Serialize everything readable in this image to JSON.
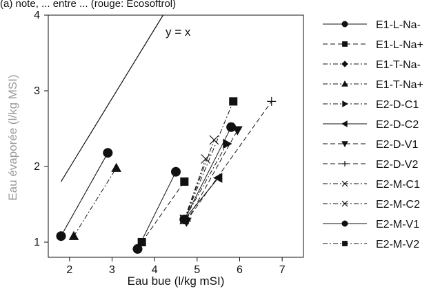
{
  "chart_data": {
    "type": "scatter",
    "caption_fragment": "(a) note, ... entre ... (rouge: Ecosoftrol)",
    "xlabel": "Eau bue (l/kg mSI)",
    "ylabel": "Eau évaporée (l/kg MSI)",
    "xlim": [
      1.5,
      7.5
    ],
    "ylim": [
      0.8,
      4.0
    ],
    "xticks": [
      "2",
      "3",
      "4",
      "5",
      "6",
      "7"
    ],
    "yticks": [
      "1",
      "2",
      "3",
      "4"
    ],
    "grid": false,
    "legend_position": "right",
    "annotation": "y = x",
    "reference_line": {
      "x": [
        1.8,
        4.2
      ],
      "y": [
        1.8,
        4.0
      ]
    },
    "series": [
      {
        "name": "E1-L-Na-",
        "marker": "circle",
        "dash": "solid",
        "x": [
          1.8,
          2.9
        ],
        "y": [
          1.08,
          2.18
        ]
      },
      {
        "name": "E1-L-Na+",
        "marker": "square",
        "dash": "dash",
        "x": [
          3.7,
          4.7
        ],
        "y": [
          1.0,
          1.8
        ]
      },
      {
        "name": "E1-T-Na-",
        "marker": "diamond",
        "dash": "dashdot",
        "x": [
          1.8,
          2.9
        ],
        "y": [
          1.08,
          2.18
        ]
      },
      {
        "name": "E1-T-Na+",
        "marker": "triangle-up",
        "dash": "dashdot",
        "x": [
          2.1,
          3.1
        ],
        "y": [
          1.08,
          1.98
        ]
      },
      {
        "name": "E2-D-C1",
        "marker": "triangle-right",
        "dash": "dashdot",
        "x": [
          4.7,
          5.7
        ],
        "y": [
          1.3,
          2.3
        ]
      },
      {
        "name": "E2-D-C2",
        "marker": "triangle-left",
        "dash": "solid",
        "x": [
          4.7,
          5.5
        ],
        "y": [
          1.3,
          1.85
        ]
      },
      {
        "name": "E2-D-V1",
        "marker": "triangle-down",
        "dash": "dash",
        "x": [
          4.75,
          5.95
        ],
        "y": [
          1.27,
          2.48
        ]
      },
      {
        "name": "E2-D-V2",
        "marker": "plus",
        "dash": "dash",
        "x": [
          4.75,
          6.75
        ],
        "y": [
          1.28,
          2.86
        ]
      },
      {
        "name": "E2-M-C1",
        "marker": "x",
        "dash": "dashdot",
        "x": [
          4.7,
          5.2
        ],
        "y": [
          1.3,
          2.1
        ]
      },
      {
        "name": "E2-M-C2",
        "marker": "x",
        "dash": "dashdot",
        "x": [
          4.7,
          5.4
        ],
        "y": [
          1.3,
          2.35
        ]
      },
      {
        "name": "E2-M-V1",
        "marker": "circle",
        "dash": "solid",
        "x": [
          3.6,
          4.5
        ],
        "y": [
          0.91,
          1.93
        ]
      },
      {
        "name": "E2-M-V1",
        "marker": "circle",
        "dash": "solid",
        "x": [
          4.7,
          5.8
        ],
        "y": [
          1.3,
          2.52
        ]
      },
      {
        "name": "E2-M-V2",
        "marker": "square",
        "dash": "dashdot",
        "x": [
          4.7,
          5.85
        ],
        "y": [
          1.3,
          2.86
        ]
      }
    ],
    "legend": [
      "E1-L-Na-",
      "E1-L-Na+",
      "E1-T-Na-",
      "E1-T-Na+",
      "E2-D-C1",
      "E2-D-C2",
      "E2-D-V1",
      "E2-D-V2",
      "E2-M-C1",
      "E2-M-C2",
      "E2-M-V1",
      "E2-M-V2"
    ]
  }
}
